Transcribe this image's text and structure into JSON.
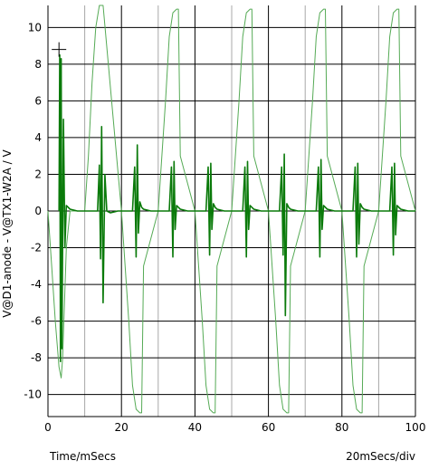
{
  "chart_data": {
    "type": "line",
    "ylabel": "V@D1-anode - V@TX1-W2A / V",
    "xlabel": "Time/mSecs",
    "scale_label": "20mSecs/div",
    "xlim": [
      0,
      100
    ],
    "ylim": [
      -11.2,
      11.2
    ],
    "x_ticks": [
      0,
      20,
      40,
      60,
      80,
      100
    ],
    "x_tick_labels": [
      "0",
      "20",
      "40",
      "60",
      "80",
      "100"
    ],
    "y_ticks": [
      10,
      8,
      6,
      4,
      2,
      0,
      -2,
      -4,
      -6,
      -8,
      -10
    ],
    "y_tick_labels": [
      "10",
      "8",
      "6",
      "4",
      "2",
      "0",
      "-2",
      "-4",
      "-6",
      "-8",
      "-10"
    ],
    "grid": true,
    "minor_x_grid_step": 10,
    "cursor": {
      "x": 3,
      "y": 8.8
    },
    "colors": {
      "light_trace": "#55aa55",
      "dark_trace": "#0a7a0a",
      "major_grid": "#000000",
      "minor_grid": "#a8a8a8"
    },
    "series": [
      {
        "x": [
          0,
          1,
          2,
          3,
          3.6,
          4,
          5,
          6,
          7,
          8,
          9,
          10,
          11,
          12,
          13,
          14,
          15,
          20,
          22,
          23,
          24,
          25,
          25.5,
          26,
          30,
          32,
          33,
          34,
          35,
          35.5,
          36,
          40,
          42,
          43,
          44,
          45,
          45.5,
          46,
          50,
          52,
          53,
          54,
          55,
          55.5,
          56,
          60,
          62,
          63,
          64,
          65,
          65.5,
          66,
          70,
          72,
          73,
          74,
          75,
          75.5,
          76,
          80,
          82,
          83,
          84,
          85,
          85.5,
          86,
          90,
          92,
          93,
          94,
          95,
          95.5,
          96,
          100
        ],
        "y": [
          0,
          -3,
          -6,
          -8.5,
          -9.1,
          -8,
          -2,
          0,
          0,
          0,
          0,
          0,
          3,
          7,
          10,
          11.2,
          11.2,
          0,
          -6,
          -9.5,
          -10.8,
          -11,
          -11,
          -3,
          0,
          6,
          9.5,
          10.8,
          11,
          11,
          3,
          0,
          -6,
          -9.5,
          -10.8,
          -11,
          -11,
          -3,
          0,
          6,
          9.5,
          10.8,
          11,
          11,
          3,
          0,
          -6,
          -9.5,
          -10.8,
          -11,
          -11,
          -3,
          0,
          6,
          9.5,
          10.8,
          11,
          11,
          3,
          0,
          -6,
          -9.5,
          -10.8,
          -11,
          -11,
          -3,
          0,
          6,
          9.5,
          10.8,
          11,
          11,
          3,
          0
        ]
      },
      {
        "x": [
          3,
          3.2,
          3.4,
          3.6,
          3.8,
          4.2,
          4.6,
          5,
          6,
          8,
          10,
          11,
          12,
          13,
          13.5,
          14,
          14.3,
          14.6,
          15,
          15.5,
          16,
          17,
          19,
          21,
          23,
          23.6,
          24,
          24.3,
          24.6,
          25,
          25.5,
          26,
          28,
          31,
          33,
          33.6,
          34,
          34.3,
          34.6,
          35,
          35.5,
          36,
          38,
          41,
          43,
          43.6,
          44,
          44.3,
          44.6,
          45,
          45.5,
          46,
          48,
          51,
          53,
          53.6,
          54,
          54.3,
          54.6,
          55,
          55.5,
          56,
          58,
          61,
          63,
          63.6,
          64,
          64.3,
          64.6,
          65,
          65.5,
          66,
          68,
          71,
          73,
          73.6,
          74,
          74.3,
          74.6,
          75,
          75.5,
          76,
          78,
          81,
          83,
          83.6,
          84,
          84.3,
          84.6,
          85,
          85.5,
          86,
          88,
          91,
          93,
          93.6,
          94,
          94.3,
          94.6,
          95,
          95.5,
          96,
          98,
          100
        ],
        "y": [
          0,
          8.5,
          -8.2,
          8.3,
          -7.5,
          5,
          -2,
          0.3,
          0.1,
          0,
          0,
          0,
          0,
          0,
          0,
          2.5,
          -2.6,
          4.6,
          -5,
          2,
          0,
          -0.1,
          0,
          0,
          0,
          2.4,
          -2.5,
          3.6,
          -1.2,
          0.5,
          0.2,
          0.1,
          0,
          0,
          0,
          2.4,
          -2.5,
          2.7,
          -1,
          0.3,
          0.2,
          0.1,
          0,
          0,
          0,
          2.4,
          -2.4,
          2.6,
          -1,
          0.4,
          0.2,
          0.1,
          0,
          0,
          0,
          2.4,
          -2.5,
          2.7,
          -1,
          0.3,
          0.2,
          0.1,
          0,
          0,
          0,
          2.4,
          -2.4,
          3.1,
          -5.7,
          0.4,
          0.2,
          0.1,
          0,
          0,
          0,
          2.4,
          -2.5,
          2.8,
          -1,
          0.3,
          0.2,
          0.1,
          0,
          0,
          0,
          2.4,
          -2.5,
          2.6,
          -1.8,
          0.4,
          0.2,
          0.1,
          0,
          0,
          0,
          2.4,
          -2.4,
          2.6,
          -1.3,
          0.3,
          0.2,
          0.1,
          0,
          0
        ]
      }
    ]
  }
}
